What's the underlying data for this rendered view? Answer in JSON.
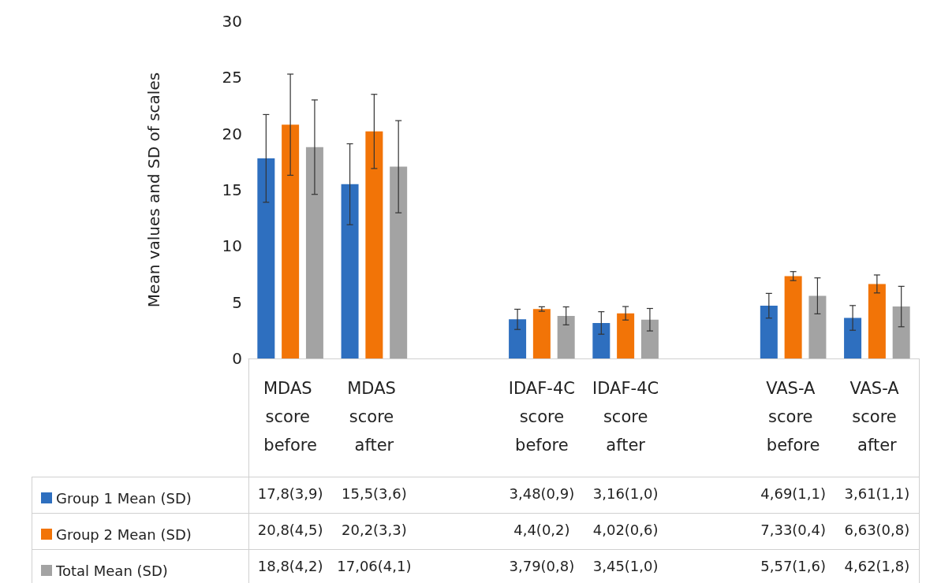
{
  "chart_data": {
    "type": "bar",
    "ylabel": "Mean values and SD of scales",
    "categories": [
      "MDAS score before",
      "MDAS score after",
      null,
      "IDAF-4C score before",
      "IDAF-4C score after",
      null,
      "VAS-A score before",
      "VAS-A score after"
    ],
    "series": [
      {
        "name": "Group 1 Mean (SD)",
        "color": "#2e6fbf",
        "values": [
          17.8,
          15.5,
          null,
          3.48,
          3.16,
          null,
          4.69,
          3.61
        ],
        "errors": [
          3.9,
          3.6,
          null,
          0.9,
          1.0,
          null,
          1.1,
          1.1
        ],
        "value_labels": [
          "17,8(3,9)",
          "15,5(3,6)",
          null,
          "3,48(0,9)",
          "3,16(1,0)",
          null,
          "4,69(1,1)",
          "3,61(1,1)"
        ]
      },
      {
        "name": "Group 2 Mean (SD)",
        "color": "#f27407",
        "values": [
          20.8,
          20.2,
          null,
          4.4,
          4.02,
          null,
          7.33,
          6.63
        ],
        "errors": [
          4.5,
          3.3,
          null,
          0.2,
          0.6,
          null,
          0.4,
          0.8
        ],
        "value_labels": [
          "20,8(4,5)",
          "20,2(3,3)",
          null,
          "4,4(0,2)",
          "4,02(0,6)",
          null,
          "7,33(0,4)",
          "6,63(0,8)"
        ]
      },
      {
        "name": "Total Mean (SD)",
        "color": "#a3a3a3",
        "values": [
          18.8,
          17.06,
          null,
          3.79,
          3.45,
          null,
          5.57,
          4.62
        ],
        "errors": [
          4.2,
          4.1,
          null,
          0.8,
          1.0,
          null,
          1.6,
          1.8
        ],
        "value_labels": [
          "18,8(4,2)",
          "17,06(4,1)",
          null,
          "3,79(0,8)",
          "3,45(1,0)",
          null,
          "5,57(1,6)",
          "4,62(1,8)"
        ]
      }
    ],
    "ylim": [
      0,
      30
    ],
    "yticks": [
      0,
      5,
      10,
      15,
      20,
      25,
      30
    ],
    "grid": false,
    "legend": "bottom left"
  }
}
